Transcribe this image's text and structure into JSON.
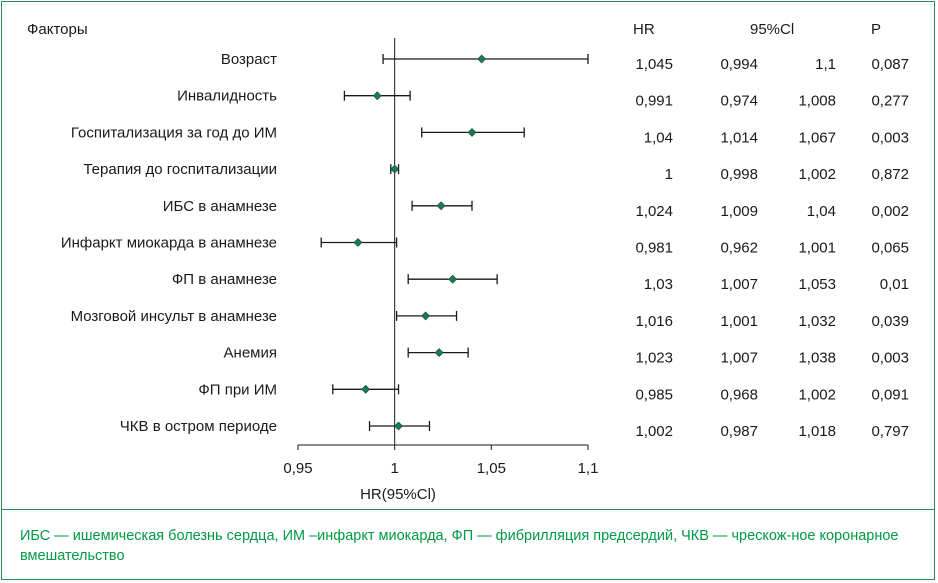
{
  "chart_data": {
    "type": "forest",
    "factors_header": "Факторы",
    "columns": {
      "hr": "HR",
      "ci": "95%Cl",
      "p": "P"
    },
    "xlabel": "HR(95%Cl)",
    "xlim": [
      0.95,
      1.1
    ],
    "xticks": [
      "0,95",
      "1",
      "1,05",
      "1,1"
    ],
    "xtick_values": [
      0.95,
      1.0,
      1.05,
      1.1
    ],
    "reference_line": 1,
    "marker_color": "#1e7a4f",
    "rows": [
      {
        "label": "Возраст",
        "hr": 1.045,
        "lo": 0.994,
        "hi": 1.1,
        "hr_text": "1,045",
        "lo_text": "0,994",
        "hi_text": "1,1",
        "p_text": "0,087"
      },
      {
        "label": "Инвалидность",
        "hr": 0.991,
        "lo": 0.974,
        "hi": 1.008,
        "hr_text": "0,991",
        "lo_text": "0,974",
        "hi_text": "1,008",
        "p_text": "0,277"
      },
      {
        "label": "Госпитализация за год до ИМ",
        "hr": 1.04,
        "lo": 1.014,
        "hi": 1.067,
        "hr_text": "1,04",
        "lo_text": "1,014",
        "hi_text": "1,067",
        "p_text": "0,003"
      },
      {
        "label": "Терапия до госпитализации",
        "hr": 1,
        "lo": 0.998,
        "hi": 1.002,
        "hr_text": "1",
        "lo_text": "0,998",
        "hi_text": "1,002",
        "p_text": "0,872"
      },
      {
        "label": "ИБС в анамнезе",
        "hr": 1.024,
        "lo": 1.009,
        "hi": 1.04,
        "hr_text": "1,024",
        "lo_text": "1,009",
        "hi_text": "1,04",
        "p_text": "0,002"
      },
      {
        "label": "Инфаркт миокарда в анамнезе",
        "hr": 0.981,
        "lo": 0.962,
        "hi": 1.001,
        "hr_text": "0,981",
        "lo_text": "0,962",
        "hi_text": "1,001",
        "p_text": "0,065"
      },
      {
        "label": "ФП в анамнезе",
        "hr": 1.03,
        "lo": 1.007,
        "hi": 1.053,
        "hr_text": "1,03",
        "lo_text": "1,007",
        "hi_text": "1,053",
        "p_text": "0,01"
      },
      {
        "label": "Мозговой инсульт в анамнезе",
        "hr": 1.016,
        "lo": 1.001,
        "hi": 1.032,
        "hr_text": "1,016",
        "lo_text": "1,001",
        "hi_text": "1,032",
        "p_text": "0,039"
      },
      {
        "label": "Анемия",
        "hr": 1.023,
        "lo": 1.007,
        "hi": 1.038,
        "hr_text": "1,023",
        "lo_text": "1,007",
        "hi_text": "1,038",
        "p_text": "0,003"
      },
      {
        "label": "ФП при ИМ",
        "hr": 0.985,
        "lo": 0.968,
        "hi": 1.002,
        "hr_text": "0,985",
        "lo_text": "0,968",
        "hi_text": "1,002",
        "p_text": "0,091"
      },
      {
        "label": "ЧКВ в остром периоде",
        "hr": 1.002,
        "lo": 0.987,
        "hi": 1.018,
        "hr_text": "1,002",
        "lo_text": "0,987",
        "hi_text": "1,018",
        "p_text": "0,797"
      }
    ]
  },
  "footnote": "ИБС — ишемическая болезнь сердца, ИМ –инфаркт миокарда, ФП — фибрилляция предсердий, ЧКВ — чрескож-ное коронарное вмешательство",
  "colors": {
    "border": "#2e8b57",
    "footnote_text": "#009a44",
    "marker": "#1e7a4f"
  }
}
